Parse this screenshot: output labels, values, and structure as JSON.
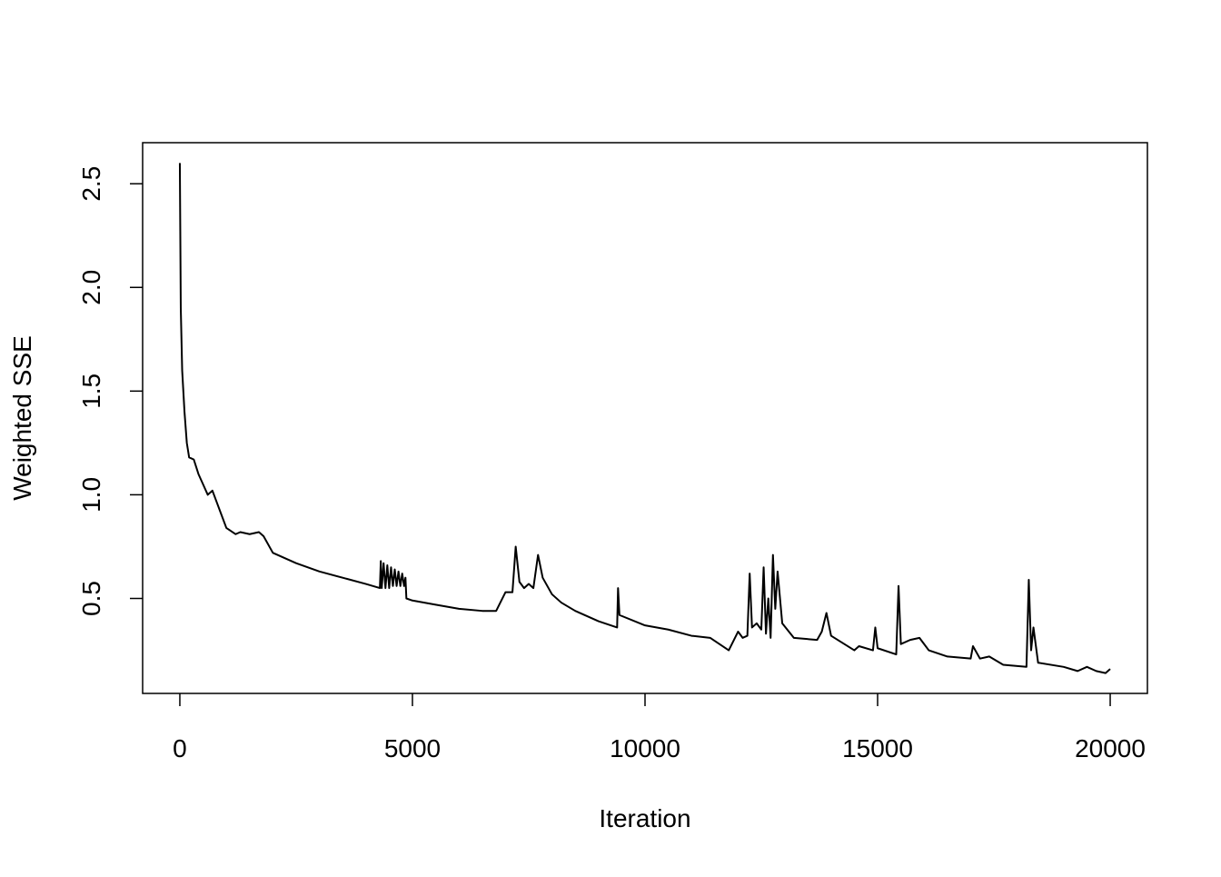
{
  "chart_data": {
    "type": "line",
    "xlabel": "Iteration",
    "ylabel": "Weighted SSE",
    "color": "#000000",
    "xlim": [
      -800,
      20800
    ],
    "xticks": [
      0,
      5000,
      10000,
      15000,
      20000
    ],
    "ylim": [
      0.042,
      2.698
    ],
    "yticks": [
      0.5,
      {
        "value": 1,
        "label": "1.0"
      },
      1.5,
      {
        "value": 2,
        "label": "2.0"
      },
      2.5
    ],
    "x": [
      0,
      20,
      50,
      100,
      150,
      200,
      300,
      400,
      500,
      600,
      700,
      800,
      900,
      1000,
      1200,
      1300,
      1500,
      1700,
      1800,
      2000,
      2500,
      3000,
      3500,
      4000,
      4300,
      4320,
      4340,
      4380,
      4420,
      4460,
      4500,
      4540,
      4580,
      4620,
      4660,
      4700,
      4740,
      4780,
      4820,
      4850,
      4870,
      5000,
      5500,
      6000,
      6500,
      6800,
      7000,
      7150,
      7220,
      7300,
      7400,
      7500,
      7600,
      7700,
      7800,
      8000,
      8200,
      8500,
      9000,
      9400,
      9420,
      9450,
      10000,
      10500,
      11000,
      11400,
      11800,
      12000,
      12100,
      12200,
      12250,
      12300,
      12400,
      12500,
      12550,
      12600,
      12650,
      12700,
      12750,
      12800,
      12850,
      12950,
      13200,
      13700,
      13800,
      13900,
      14000,
      14500,
      14600,
      14900,
      14950,
      15000,
      15400,
      15450,
      15500,
      15700,
      15900,
      16100,
      16500,
      17000,
      17050,
      17200,
      17400,
      17700,
      18200,
      18250,
      18300,
      18350,
      18450,
      19000,
      19300,
      19500,
      19700,
      19900,
      20000
    ],
    "values": [
      2.6,
      1.9,
      1.6,
      1.4,
      1.25,
      1.18,
      1.17,
      1.1,
      1.05,
      1.0,
      1.02,
      0.96,
      0.9,
      0.84,
      0.81,
      0.82,
      0.81,
      0.82,
      0.8,
      0.72,
      0.67,
      0.63,
      0.6,
      0.57,
      0.55,
      0.68,
      0.55,
      0.67,
      0.55,
      0.66,
      0.55,
      0.65,
      0.56,
      0.64,
      0.56,
      0.63,
      0.56,
      0.62,
      0.56,
      0.6,
      0.5,
      0.49,
      0.47,
      0.45,
      0.44,
      0.44,
      0.53,
      0.53,
      0.75,
      0.58,
      0.55,
      0.57,
      0.55,
      0.71,
      0.6,
      0.52,
      0.48,
      0.44,
      0.39,
      0.36,
      0.55,
      0.42,
      0.37,
      0.35,
      0.32,
      0.31,
      0.25,
      0.34,
      0.31,
      0.32,
      0.62,
      0.36,
      0.38,
      0.35,
      0.65,
      0.33,
      0.5,
      0.31,
      0.71,
      0.45,
      0.63,
      0.38,
      0.31,
      0.3,
      0.34,
      0.43,
      0.32,
      0.25,
      0.27,
      0.25,
      0.36,
      0.26,
      0.23,
      0.56,
      0.28,
      0.3,
      0.31,
      0.25,
      0.22,
      0.21,
      0.27,
      0.21,
      0.22,
      0.18,
      0.17,
      0.59,
      0.25,
      0.36,
      0.19,
      0.17,
      0.15,
      0.17,
      0.15,
      0.14,
      0.16
    ]
  }
}
